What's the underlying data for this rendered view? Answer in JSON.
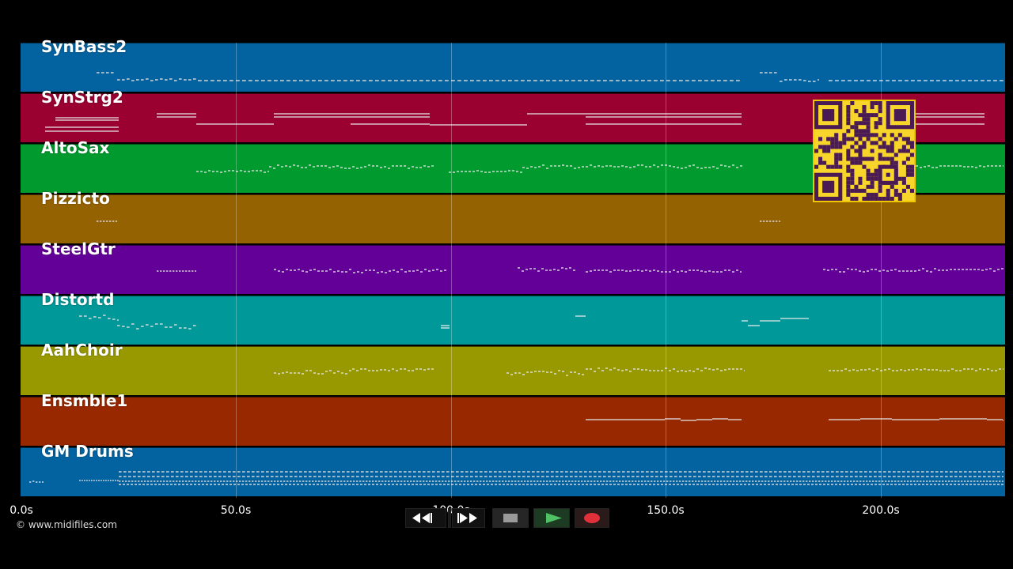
{
  "tracks": [
    {
      "label": "SynBass2",
      "color": "#0363a0"
    },
    {
      "label": "SynStrg2",
      "color": "#9a0030"
    },
    {
      "label": "AltoSax",
      "color": "#009a2e"
    },
    {
      "label": "Pizzicto",
      "color": "#946200"
    },
    {
      "label": "SteelGtr",
      "color": "#630098"
    },
    {
      "label": "Distortd",
      "color": "#009898"
    },
    {
      "label": "AahChoir",
      "color": "#989800"
    },
    {
      "label": "Ensmble1",
      "color": "#972800"
    },
    {
      "label": "GM Drums",
      "color": "#0363a0"
    }
  ],
  "timeline": {
    "ticks": [
      "0.0s",
      "50.0s",
      "100.0s",
      "150.0s",
      "200.0s"
    ]
  },
  "copyright": "© www.midifiles.com",
  "transport": {
    "rewind": "rewind-icon",
    "fast_forward": "fast-forward-icon",
    "stop": "stop-icon",
    "play": "play-icon",
    "record": "record-icon"
  },
  "colors": {
    "background": "#000000",
    "note": "#e8e8e8",
    "play": "#35a84a",
    "record": "#e0303a",
    "qr_frame": "#f7d52a",
    "qr_module": "#4a1a55"
  }
}
